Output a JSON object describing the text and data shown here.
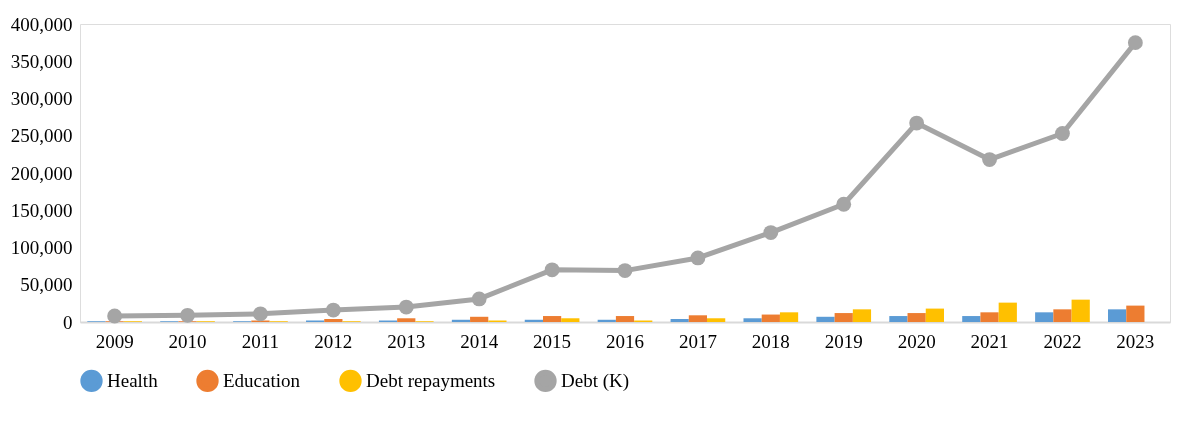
{
  "chart_data": {
    "type": "bar",
    "categories": [
      "2009",
      "2010",
      "2011",
      "2012",
      "2013",
      "2014",
      "2015",
      "2016",
      "2017",
      "2018",
      "2019",
      "2020",
      "2021",
      "2022",
      "2023"
    ],
    "series": [
      {
        "name": "Health",
        "color": "#5b9bd5",
        "values": [
          1000,
          1000,
          1000,
          2000,
          2000,
          3000,
          3000,
          3000,
          4000,
          5000,
          7000,
          8000,
          8000,
          13000,
          17000
        ]
      },
      {
        "name": "Education",
        "color": "#ed7d31",
        "values": [
          1000,
          1000,
          2000,
          4000,
          5000,
          7000,
          8000,
          8000,
          9000,
          10000,
          12000,
          12000,
          13000,
          17000,
          22000
        ]
      },
      {
        "name": "Debt repayments",
        "color": "#ffc000",
        "values": [
          1000,
          1000,
          1000,
          1000,
          1000,
          2000,
          5000,
          2000,
          5000,
          13000,
          17000,
          18000,
          26000,
          30000,
          null
        ]
      },
      {
        "name": "Debt (K)",
        "type": "line",
        "color": "#a5a5a5",
        "marker": "circle",
        "values": [
          8000,
          9000,
          11000,
          16000,
          20000,
          31000,
          70000,
          69000,
          86000,
          120000,
          158000,
          267000,
          218000,
          253000,
          375000
        ]
      }
    ],
    "ylim": [
      0,
      400000
    ],
    "yticks": [
      0,
      {
        "value": 50000,
        "label": "50,000"
      },
      {
        "value": 100000,
        "label": "100,000"
      },
      {
        "value": 150000,
        "label": "150,000"
      },
      {
        "value": 200000,
        "label": "200,000"
      },
      {
        "value": 250000,
        "label": "250,000"
      },
      {
        "value": 300000,
        "label": "300,000"
      },
      {
        "value": 350000,
        "label": "350,000"
      },
      {
        "value": 400000,
        "label": "400,000"
      }
    ],
    "grid": false,
    "legend": "bottom"
  }
}
